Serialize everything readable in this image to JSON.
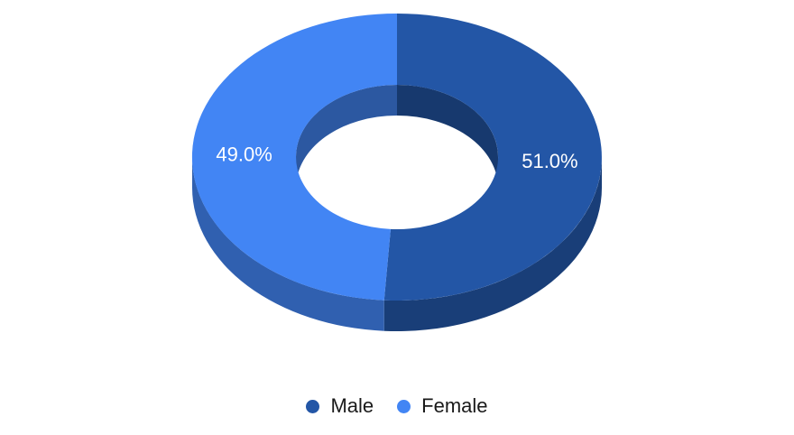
{
  "chart_data": {
    "type": "pie",
    "style": "3d-donut",
    "slices": [
      {
        "label": "Male",
        "value": 51.0,
        "display": "51.0%",
        "color": "#2356a6"
      },
      {
        "label": "Female",
        "value": 49.0,
        "display": "49.0%",
        "color": "#4285f4"
      }
    ],
    "legend_position": "bottom"
  },
  "legend": {
    "items": [
      {
        "label": "Male",
        "color": "#2356a6"
      },
      {
        "label": "Female",
        "color": "#4285f4"
      }
    ]
  }
}
